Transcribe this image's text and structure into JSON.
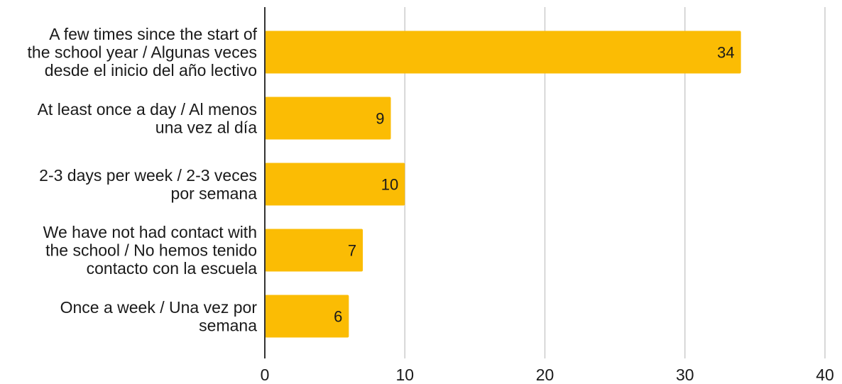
{
  "chart_data": {
    "type": "bar",
    "orientation": "horizontal",
    "title": "",
    "xlabel": "",
    "ylabel": "",
    "categories": [
      [
        "A few times since the start of",
        "the school year / Algunas veces",
        "desde el inicio del año lectivo"
      ],
      [
        "At least once a day / Al menos",
        "una vez al día"
      ],
      [
        "2-3 days per week / 2-3 veces",
        "por semana"
      ],
      [
        "We have not had contact with",
        "the school / No hemos tenido",
        "contacto con la escuela"
      ],
      [
        "Once a week / Una vez por",
        "semana"
      ]
    ],
    "values": [
      34,
      9,
      10,
      7,
      6
    ],
    "data_labels": [
      "34",
      "9",
      "10",
      "7",
      "6"
    ],
    "xlim": [
      0,
      40
    ],
    "ticks": [
      0,
      10,
      20,
      30,
      40
    ],
    "tick_labels": [
      "0",
      "10",
      "20",
      "30",
      "40"
    ],
    "grid": "vertical",
    "legend": "none",
    "bar_color": "#FBBC04",
    "gridline_color": "#cccccc",
    "axis_color": "#333333"
  }
}
